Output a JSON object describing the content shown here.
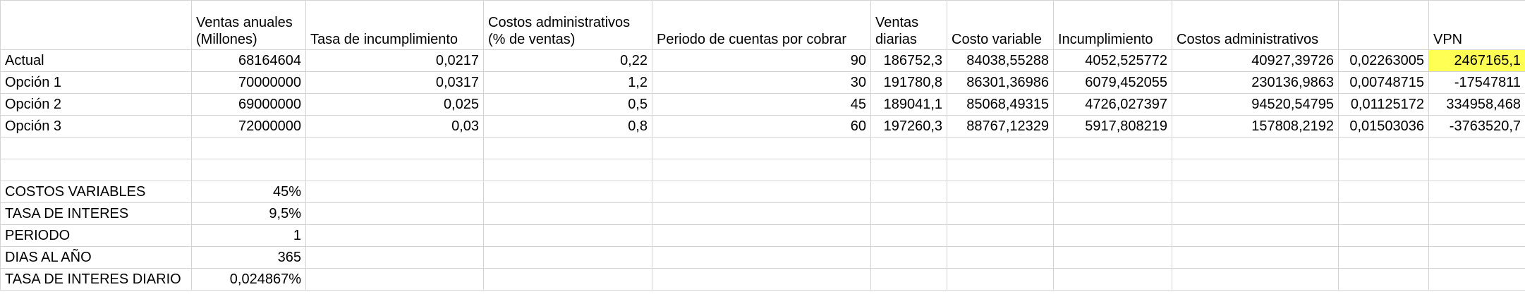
{
  "headers": [
    "",
    "Ventas anuales (Millones)",
    "Tasa de incumplimiento",
    "Costos administrativos (% de ventas)",
    "Periodo de cuentas por cobrar",
    "Ventas diarias",
    "Costo variable",
    "Incumplimiento",
    "Costos administrativos",
    "",
    "VPN"
  ],
  "rows": [
    {
      "label": "Actual",
      "ventas": "68164604",
      "tasa": "0,0217",
      "costos_adm_pct": "0,22",
      "periodo": "90",
      "ventas_diarias": "186752,3",
      "costo_variable": "84038,55288",
      "incumplimiento": "4052,525772",
      "costos_adm": "40927,39726",
      "extra": "0,02263005",
      "vpn": "2467165,1"
    },
    {
      "label": "Opción 1",
      "ventas": "70000000",
      "tasa": "0,0317",
      "costos_adm_pct": "1,2",
      "periodo": "30",
      "ventas_diarias": "191780,8",
      "costo_variable": "86301,36986",
      "incumplimiento": "6079,452055",
      "costos_adm": "230136,9863",
      "extra": "0,00748715",
      "vpn": "-17547811"
    },
    {
      "label": "Opción 2",
      "ventas": "69000000",
      "tasa": "0,025",
      "costos_adm_pct": "0,5",
      "periodo": "45",
      "ventas_diarias": "189041,1",
      "costo_variable": "85068,49315",
      "incumplimiento": "4726,027397",
      "costos_adm": "94520,54795",
      "extra": "0,01125172",
      "vpn": "334958,468"
    },
    {
      "label": "Opción 3",
      "ventas": "72000000",
      "tasa": "0,03",
      "costos_adm_pct": "0,8",
      "periodo": "60",
      "ventas_diarias": "197260,3",
      "costo_variable": "88767,12329",
      "incumplimiento": "5917,808219",
      "costos_adm": "157808,2192",
      "extra": "0,01503036",
      "vpn": "-3763520,7"
    }
  ],
  "params": [
    {
      "label": "COSTOS VARIABLES",
      "value": "45%"
    },
    {
      "label": "TASA DE INTERES",
      "value": "9,5%"
    },
    {
      "label": "PERIODO",
      "value": "1"
    },
    {
      "label": "DIAS AL AÑO",
      "value": "365"
    },
    {
      "label": "TASA DE INTERES DIARIO",
      "value": "0,024867%"
    }
  ],
  "colors": {
    "highlight": "#ffff54",
    "grid": "#d4d4d4"
  }
}
